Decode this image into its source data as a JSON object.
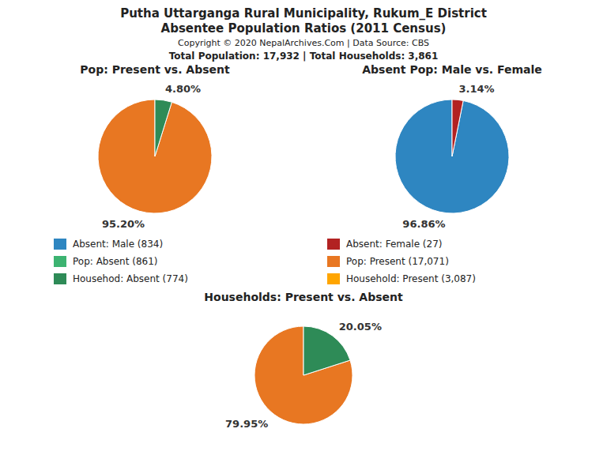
{
  "title": "Putha Uttarganga Rural Municipality, Rukum_E District",
  "subtitle": "Absentee Population Ratios (2011 Census)",
  "annotations": [
    "Copyright © 2020 NepalArchives.Com | Data Source: CBS",
    "Total Population: 17,932 | Total Households: 3,861"
  ],
  "series": [
    {
      "name": "Absent: Male (834)",
      "color": "#2E86C1"
    },
    {
      "name": "Pop: Absent (861)",
      "color": "#3CB371"
    },
    {
      "name": "Househod: Absent (774)",
      "color": "#2E8B57"
    },
    {
      "name": "Absent: Female (27)",
      "color": "#B22222"
    },
    {
      "name": "Pop: Present (17,071)",
      "color": "#E87722"
    },
    {
      "name": "Household: Present (3,087)",
      "color": "#FFA500"
    }
  ],
  "chart_data": [
    {
      "type": "pie",
      "title": "Pop: Present vs. Absent",
      "values": [
        95.2,
        4.8
      ],
      "value_labels": [
        "95.20%",
        "4.80%"
      ],
      "colors": [
        "#E87722",
        "#2E8B57"
      ],
      "data_labels": true
    },
    {
      "type": "pie",
      "title": "Absent Pop: Male vs. Female",
      "values": [
        96.86,
        3.14
      ],
      "value_labels": [
        "96.86%",
        "3.14%"
      ],
      "colors": [
        "#2E86C1",
        "#B22222"
      ],
      "data_labels": true
    },
    {
      "type": "pie",
      "title": "Households: Present vs. Absent",
      "values": [
        79.95,
        20.05
      ],
      "value_labels": [
        "79.95%",
        "20.05%"
      ],
      "colors": [
        "#E87722",
        "#2E8B57"
      ],
      "data_labels": true
    }
  ]
}
